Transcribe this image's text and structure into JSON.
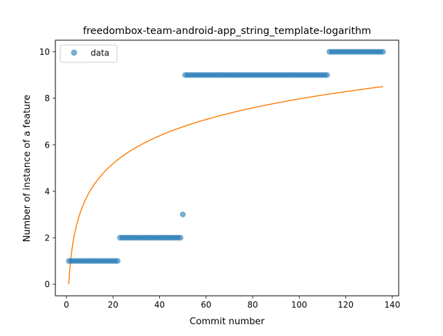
{
  "chart_data": {
    "type": "scatter",
    "title": "freedombox-team-android-app_string_template-logarithm",
    "xlabel": "Commit number",
    "ylabel": "Number of instance of a feature",
    "xlim": [
      -4.75,
      142.75
    ],
    "ylim": [
      -0.5,
      10.5
    ],
    "xticks": [
      0,
      20,
      40,
      60,
      80,
      100,
      120,
      140
    ],
    "yticks": [
      0,
      2,
      4,
      6,
      8,
      10
    ],
    "grid": false,
    "legend": {
      "placement": "top-left",
      "entries": [
        "data"
      ]
    },
    "colors": {
      "data": "#1f77b4",
      "fit": "#ff7f0e"
    },
    "series": [
      {
        "name": "data",
        "kind": "scatter",
        "segments": [
          {
            "x_start": 1,
            "x_end": 22,
            "y": 1
          },
          {
            "x_start": 23,
            "x_end": 49,
            "y": 2
          },
          {
            "x_start": 50,
            "x_end": 50,
            "y": 3
          },
          {
            "x_start": 51,
            "x_end": 112,
            "y": 9
          },
          {
            "x_start": 113,
            "x_end": 136,
            "y": 10
          }
        ]
      },
      {
        "kind": "line",
        "model": "logarithm",
        "a": 0.0,
        "b": 1.7311,
        "x_start": 1,
        "x_end": 136
      }
    ]
  }
}
